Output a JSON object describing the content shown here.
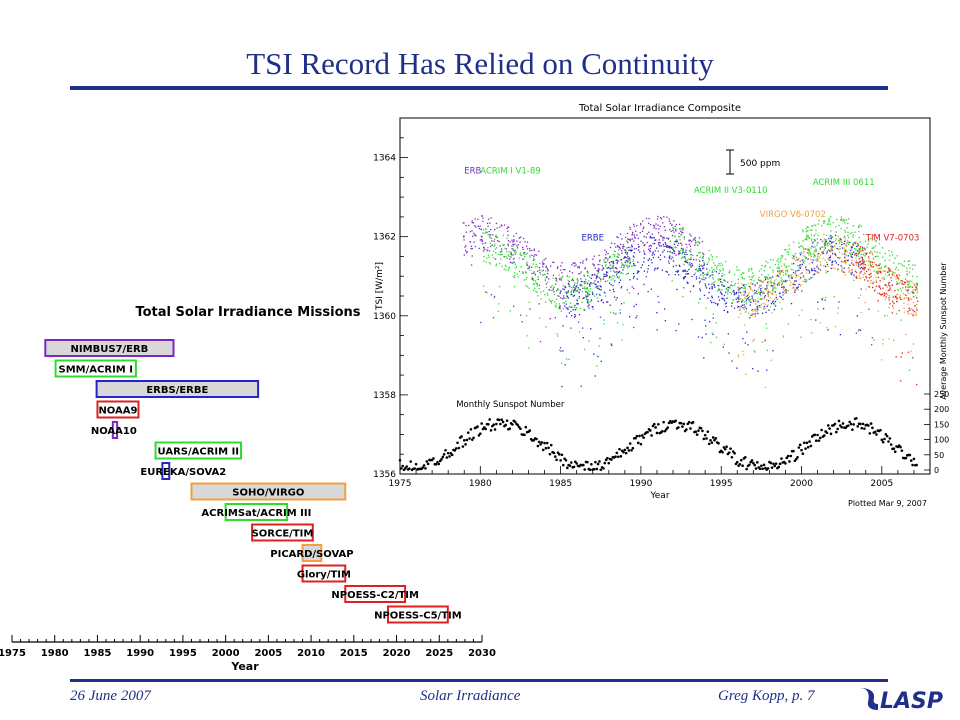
{
  "slide": {
    "title": "TSI Record Has Relied on Continuity"
  },
  "footer": {
    "date": "26 June 2007",
    "topic": "Solar Irradiance",
    "author_page": "Greg Kopp, p. 7",
    "logo_text": "LASP"
  },
  "colors": {
    "title": "#1f2f8a",
    "purple": "#7a2bbf",
    "green": "#2edc2e",
    "blue": "#2626c8",
    "red": "#e02020",
    "orange": "#f0a040",
    "black": "#000000",
    "bar_fill": "#d8d8d8"
  },
  "chart_data": [
    {
      "type": "bar",
      "subtype": "timeline",
      "title": "Total Solar Irradiance Missions",
      "xlabel": "Year",
      "xlim": [
        1975,
        2030
      ],
      "xticks": [
        1975,
        1980,
        1985,
        1990,
        1995,
        2000,
        2005,
        2010,
        2015,
        2020,
        2025,
        2030
      ],
      "grid": false,
      "missions": [
        {
          "name": "NIMBUS7/ERB",
          "start": 1978.9,
          "end": 1993.9,
          "color": "#7a2bbf"
        },
        {
          "name": "SMM/ACRIM I",
          "start": 1980.1,
          "end": 1989.5,
          "color": "#2edc2e"
        },
        {
          "name": "ERBS/ERBE",
          "start": 1984.9,
          "end": 2003.8,
          "color": "#2626c8"
        },
        {
          "name": "NOAA9",
          "start": 1985.0,
          "end": 1989.8,
          "color": "#e02020"
        },
        {
          "name": "NOAA10",
          "start": 1986.8,
          "end": 1987.3,
          "color": "#7a2bbf"
        },
        {
          "name": "UARS/ACRIM II",
          "start": 1991.8,
          "end": 2001.8,
          "color": "#2edc2e"
        },
        {
          "name": "EUREKA/SOVA2",
          "start": 1992.6,
          "end": 1993.4,
          "color": "#2626c8"
        },
        {
          "name": "SOHO/VIRGO",
          "start": 1996.0,
          "end": 2014.0,
          "color": "#f0a040"
        },
        {
          "name": "ACRIMSat/ACRIM III",
          "start": 2000.0,
          "end": 2007.2,
          "color": "#2edc2e"
        },
        {
          "name": "SORCE/TIM",
          "start": 2003.1,
          "end": 2010.2,
          "color": "#e02020"
        },
        {
          "name": "PICARD/SOVAP",
          "start": 2009.0,
          "end": 2011.2,
          "color": "#f0a040"
        },
        {
          "name": "Glory/TIM",
          "start": 2009.0,
          "end": 2014.0,
          "color": "#e02020"
        },
        {
          "name": "NPOESS-C2/TIM",
          "start": 2014.0,
          "end": 2021.0,
          "color": "#e02020"
        },
        {
          "name": "NPOESS-C5/TIM",
          "start": 2019.0,
          "end": 2026.0,
          "color": "#e02020"
        }
      ]
    },
    {
      "type": "scatter",
      "title": "Total Solar Irradiance Composite",
      "xlabel": "Year",
      "ylabel": "TSI [W/m²]",
      "y2label": "Average Monthly Sunspot Number",
      "xlim": [
        1975,
        2008
      ],
      "ylim": [
        1356,
        1365
      ],
      "xticks": [
        1975,
        1980,
        1985,
        1990,
        1995,
        2000,
        2005
      ],
      "yticks": [
        1356,
        1358,
        1360,
        1362,
        1364
      ],
      "y2ticks": [
        0,
        50,
        100,
        150,
        200,
        250
      ],
      "scale_bar": "500 ppm",
      "note": "Plotted Mar  9, 2007",
      "series": [
        {
          "name": "ERB",
          "color": "#7a2bbf",
          "range": [
            1978.9,
            1993.9
          ]
        },
        {
          "name": "ACRIM I V1-89",
          "color": "#2edc2e",
          "range": [
            1980.1,
            1989.5
          ]
        },
        {
          "name": "ERBE",
          "color": "#2626c8",
          "range": [
            1984.9,
            2003.8
          ]
        },
        {
          "name": "ACRIM II V3-0110",
          "color": "#2edc2e",
          "range": [
            1991.8,
            2000.7
          ]
        },
        {
          "name": "VIRGO V6-0702",
          "color": "#f0a040",
          "range": [
            1996.0,
            2007.2
          ]
        },
        {
          "name": "ACRIM III 0611",
          "color": "#2edc2e",
          "range": [
            2000.0,
            2007.2
          ]
        },
        {
          "name": "TIM V7-0703",
          "color": "#e02020",
          "range": [
            2003.1,
            2007.2
          ]
        },
        {
          "name": "Monthly Sunspot Number",
          "color": "#000000",
          "range": [
            1975,
            2007.2
          ]
        }
      ]
    }
  ]
}
